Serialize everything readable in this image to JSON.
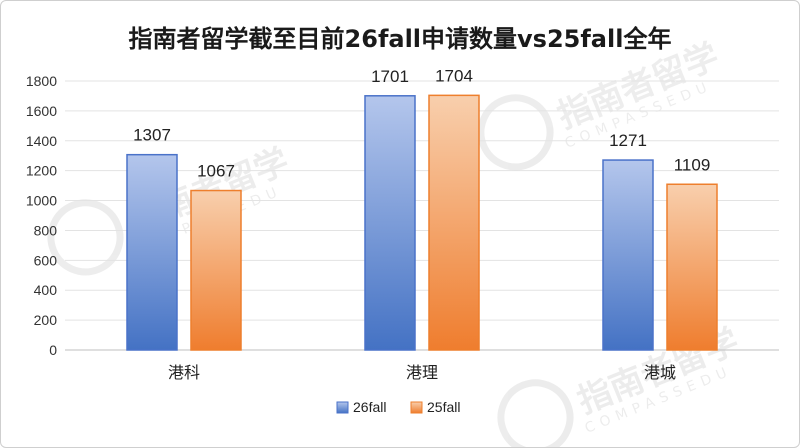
{
  "chart_data": {
    "type": "bar",
    "title": "指南者留学截至目前26fall申请数量vs25fall全年",
    "categories": [
      "港科",
      "港理",
      "港城"
    ],
    "series": [
      {
        "name": "26fall",
        "values": [
          1307,
          1701,
          1271
        ],
        "color": "#4a72c9"
      },
      {
        "name": "25fall",
        "values": [
          1067,
          1704,
          1109
        ],
        "color": "#ee7f2d"
      }
    ],
    "ylim": [
      0,
      1800
    ],
    "yticks": [
      0,
      200,
      400,
      600,
      800,
      1000,
      1200,
      1400,
      1600,
      1800
    ],
    "grid": true,
    "legend": "bottom",
    "data_labels": true
  },
  "watermark": {
    "brand": "指南者留学",
    "latin": "COMPASSEDU"
  }
}
